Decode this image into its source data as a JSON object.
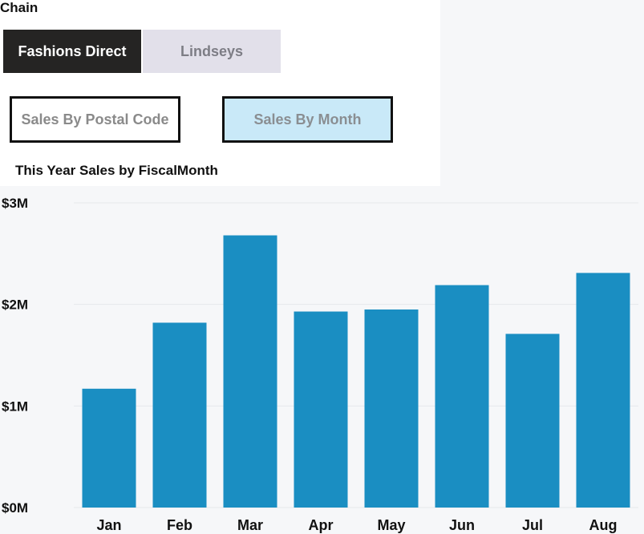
{
  "slicer": {
    "title": "Chain",
    "options": [
      "Fashions Direct",
      "Lindseys"
    ],
    "selected": "Fashions Direct"
  },
  "navigation": {
    "postal_label": "Sales By Postal Code",
    "month_label": "Sales By Month",
    "active": "Sales By Month"
  },
  "chart_data": {
    "type": "bar",
    "title": "This Year Sales by FiscalMonth",
    "xlabel": "",
    "ylabel": "",
    "categories": [
      "Jan",
      "Feb",
      "Mar",
      "Apr",
      "May",
      "Jun",
      "Jul",
      "Aug"
    ],
    "values": [
      1.17,
      1.82,
      2.68,
      1.93,
      1.95,
      2.19,
      1.71,
      2.31
    ],
    "value_unit": "millions USD",
    "ylim": [
      0,
      3
    ],
    "yticks": [
      0,
      1,
      2,
      3
    ],
    "ytick_labels": [
      "$0M",
      "$1M",
      "$2M",
      "$3M"
    ],
    "grid": true,
    "bar_color": "#1a8ec2",
    "grid_color": "#e6e8ec"
  }
}
